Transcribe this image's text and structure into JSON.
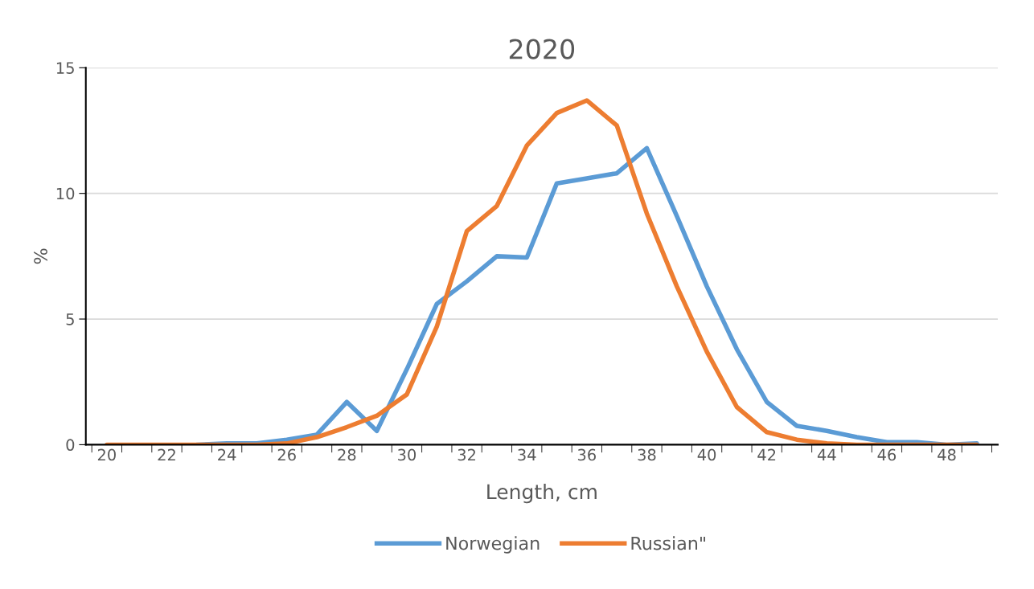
{
  "chart_data": {
    "type": "line",
    "title": "2020",
    "xlabel": "Length, cm",
    "ylabel": "%",
    "categories": [
      "20",
      null,
      "22",
      null,
      "24",
      null,
      "26",
      null,
      "28",
      null,
      "30",
      null,
      "32",
      null,
      "34",
      null,
      "36",
      null,
      "38",
      null,
      "40",
      null,
      "42",
      null,
      "44",
      null,
      "46",
      null,
      "48",
      null
    ],
    "series": [
      {
        "name": "Norwegian",
        "color": "#5b9bd5",
        "values": [
          null,
          null,
          null,
          0,
          0.05,
          0.05,
          0.2,
          0.4,
          1.7,
          0.55,
          3.0,
          5.6,
          6.5,
          7.5,
          7.45,
          10.4,
          10.6,
          10.8,
          11.8,
          9.1,
          6.3,
          3.8,
          1.7,
          0.75,
          0.55,
          0.3,
          0.1,
          0.1,
          0.0,
          0.05
        ]
      },
      {
        "name": "Russian\"",
        "color": "#ed7d31",
        "values": [
          0,
          0,
          0,
          0,
          0,
          0,
          0.05,
          0.3,
          0.7,
          1.15,
          2.0,
          4.7,
          8.5,
          9.5,
          11.9,
          13.2,
          13.7,
          12.7,
          9.2,
          6.3,
          3.7,
          1.5,
          0.5,
          0.2,
          0.05,
          0,
          0,
          0,
          0,
          0
        ]
      }
    ],
    "ylim": [
      0,
      15
    ],
    "yticks": [
      0,
      5,
      10,
      15
    ],
    "grid": "y",
    "legend": "bottom",
    "marker": "none",
    "line_style": "solid"
  }
}
